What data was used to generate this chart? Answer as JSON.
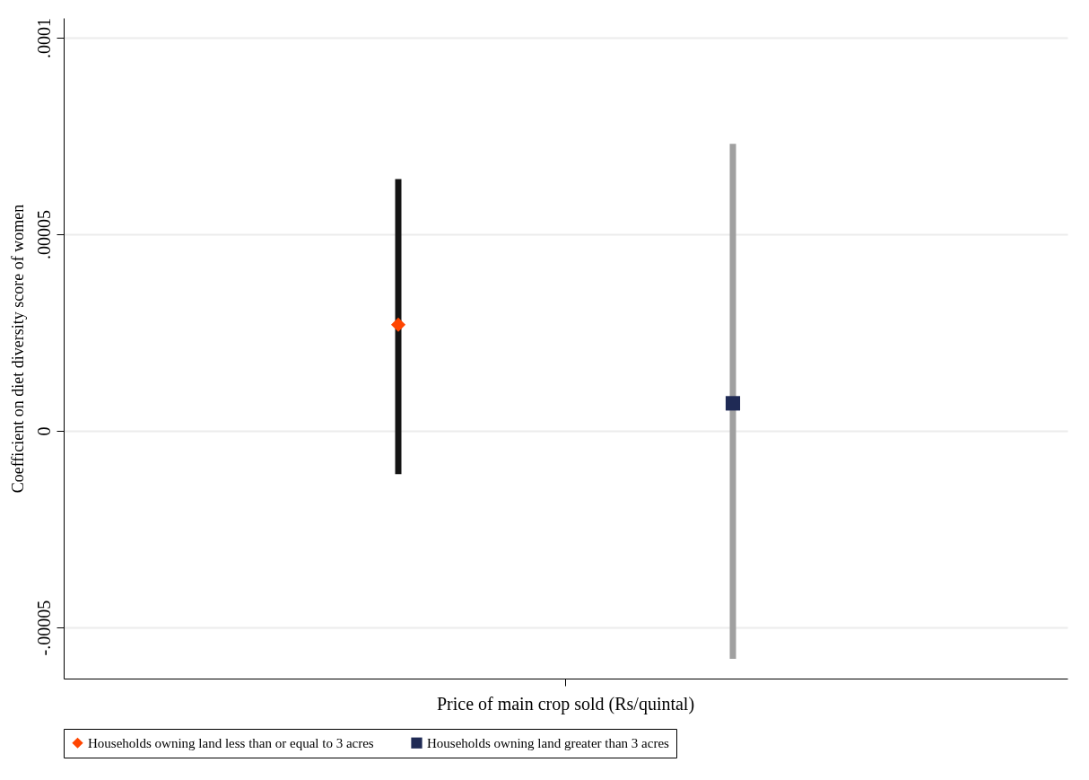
{
  "chart_data": {
    "type": "scatter",
    "ylabel": "Coefficient on diet diversity score of women",
    "categories": [
      "Price of main crop sold (Rs/quintal)"
    ],
    "series": [
      {
        "name": "Households owning land less than or equal to 3 acres",
        "color": "#ff4500",
        "marker": "diamond",
        "values": [
          2.7e-05
        ],
        "errors": [
          [
            -1.1e-05,
            6.4e-05
          ]
        ]
      },
      {
        "name": "Households owning land greater than 3 acres",
        "color": "#1f2a55",
        "marker": "square",
        "values": [
          7e-06
        ],
        "errors": [
          [
            -5.8e-05,
            7.3e-05
          ]
        ]
      }
    ],
    "ylim": [
      -6.3e-05,
      0.000105
    ],
    "yticks": [
      {
        "value": -5e-05,
        "label": "-.00005"
      },
      {
        "value": 0,
        "label": "0"
      },
      {
        "value": 5e-05,
        "label": ".00005"
      },
      {
        "value": 0.0001,
        "label": ".0001"
      }
    ],
    "grid": "y",
    "legend": "bottom"
  }
}
